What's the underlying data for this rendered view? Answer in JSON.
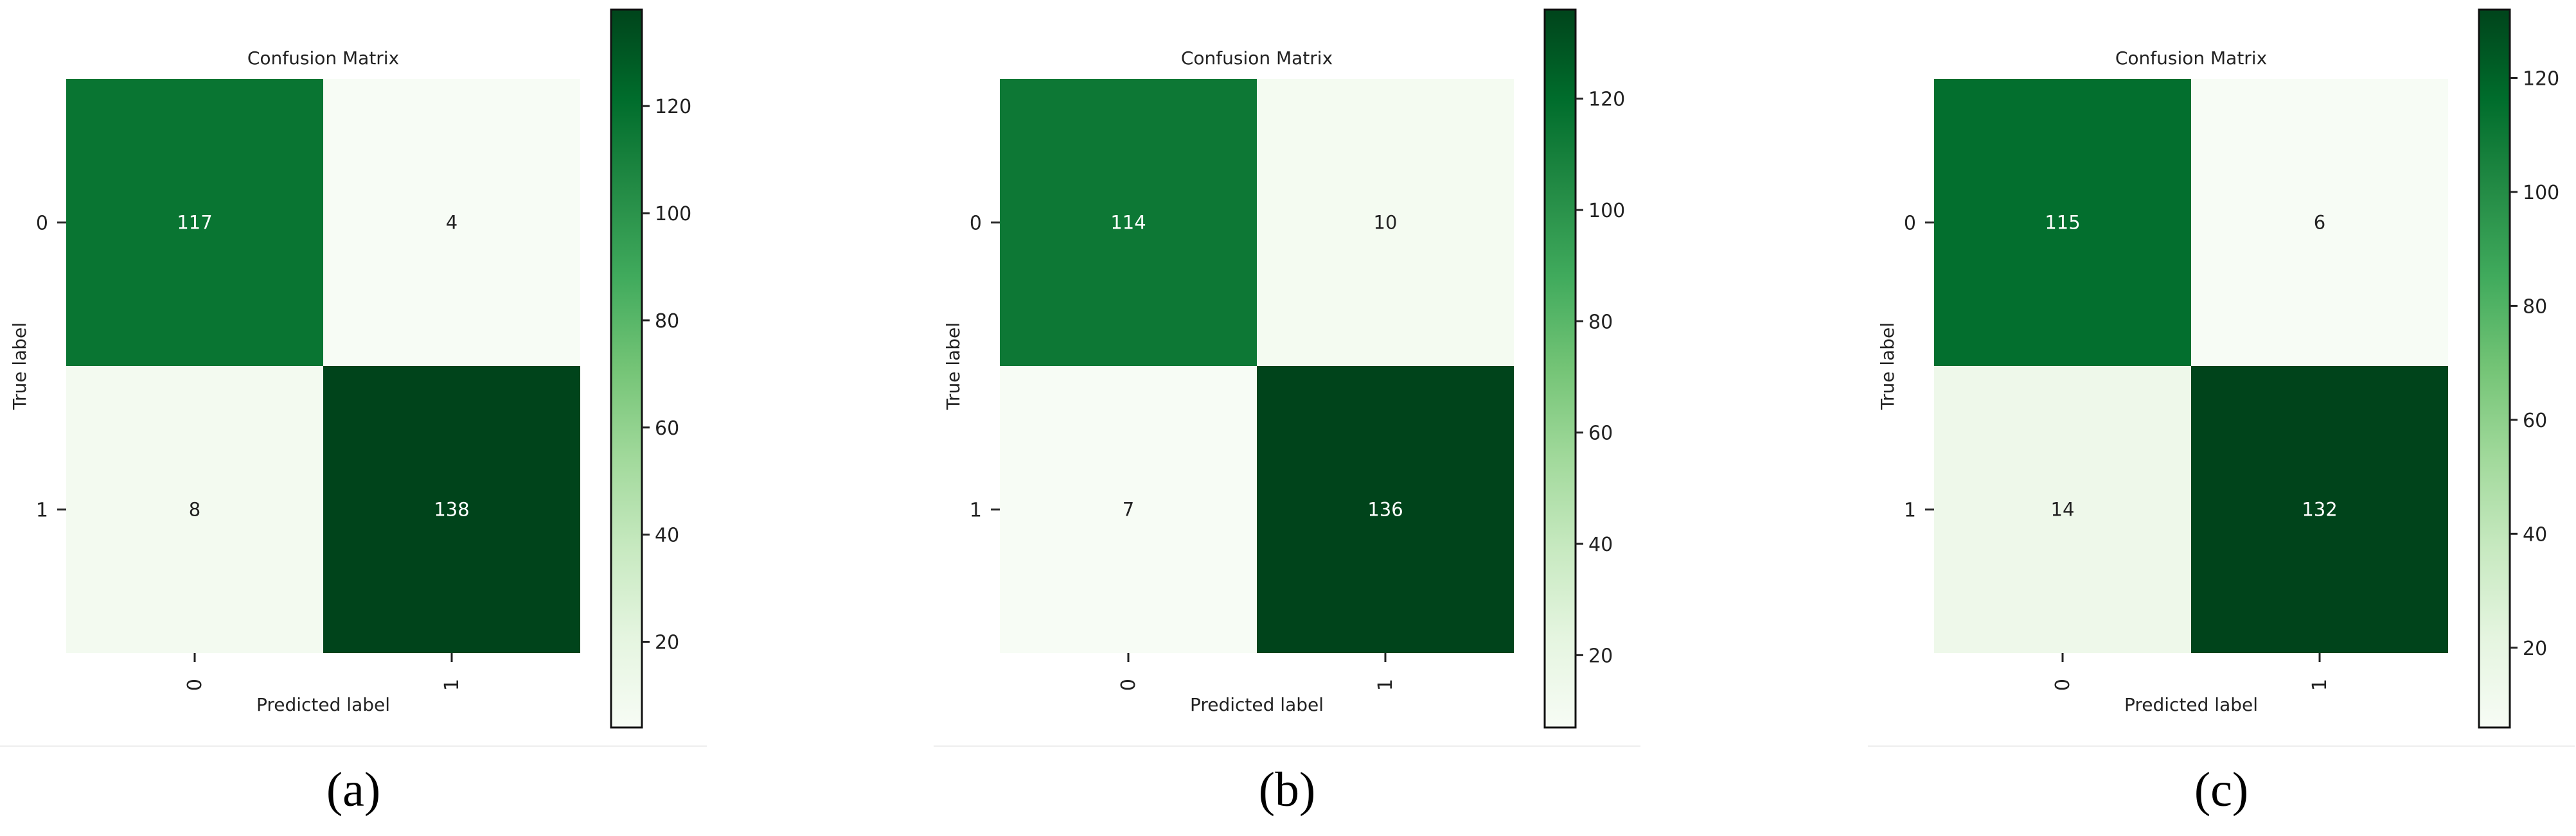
{
  "colors": {
    "cmap_low": "#f7fcf5",
    "cmap_high": "#00441b",
    "text_dark_cell": "#ffffff",
    "text_light_cell": "#222222",
    "axis": "#222222"
  },
  "chart_data": [
    {
      "type": "heatmap",
      "title": "Confusion Matrix",
      "xlabel": "Predicted label",
      "ylabel": "True label",
      "x_ticks": [
        "0",
        "1"
      ],
      "y_ticks": [
        "0",
        "1"
      ],
      "matrix": [
        [
          117,
          4
        ],
        [
          8,
          138
        ]
      ],
      "colorbar": {
        "min": 4,
        "max": 138,
        "ticks": [
          20,
          40,
          60,
          80,
          100,
          120
        ]
      },
      "panel_label": "(a)"
    },
    {
      "type": "heatmap",
      "title": "Confusion Matrix",
      "xlabel": "Predicted label",
      "ylabel": "True label",
      "x_ticks": [
        "0",
        "1"
      ],
      "y_ticks": [
        "0",
        "1"
      ],
      "matrix": [
        [
          114,
          10
        ],
        [
          7,
          136
        ]
      ],
      "colorbar": {
        "min": 7,
        "max": 136,
        "ticks": [
          20,
          40,
          60,
          80,
          100,
          120
        ]
      },
      "panel_label": "(b)"
    },
    {
      "type": "heatmap",
      "title": "Confusion Matrix",
      "xlabel": "Predicted label",
      "ylabel": "True label",
      "x_ticks": [
        "0",
        "1"
      ],
      "y_ticks": [
        "0",
        "1"
      ],
      "matrix": [
        [
          115,
          6
        ],
        [
          14,
          132
        ]
      ],
      "colorbar": {
        "min": 6,
        "max": 132,
        "ticks": [
          20,
          40,
          60,
          80,
          100,
          120
        ]
      },
      "panel_label": "(c)"
    }
  ]
}
